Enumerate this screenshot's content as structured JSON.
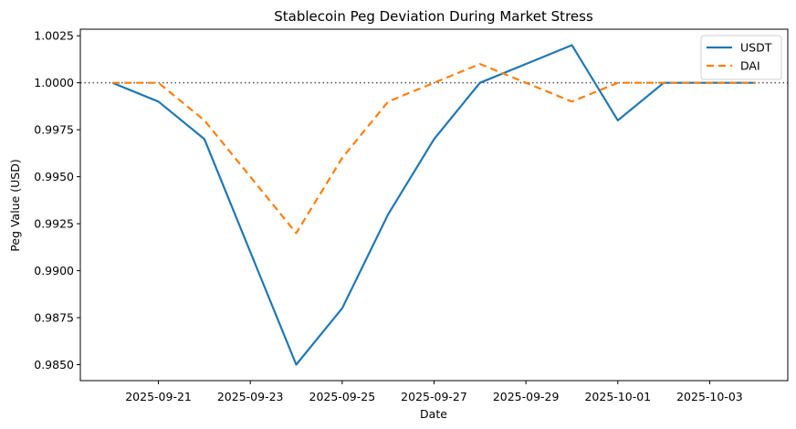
{
  "chart_data": {
    "type": "line",
    "title": "Stablecoin Peg Deviation During Market Stress",
    "xlabel": "Date",
    "ylabel": "Peg Value (USD)",
    "x": [
      "2025-09-20",
      "2025-09-21",
      "2025-09-22",
      "2025-09-23",
      "2025-09-24",
      "2025-09-25",
      "2025-09-26",
      "2025-09-27",
      "2025-09-28",
      "2025-09-29",
      "2025-09-30",
      "2025-10-01",
      "2025-10-02",
      "2025-10-03",
      "2025-10-04"
    ],
    "series": [
      {
        "name": "USDT",
        "color": "#1f77b4",
        "style": "solid",
        "values": [
          1.0,
          0.999,
          0.997,
          0.991,
          0.985,
          0.988,
          0.993,
          0.997,
          1.0,
          1.001,
          1.002,
          0.998,
          1.0,
          1.0,
          1.0
        ]
      },
      {
        "name": "DAI",
        "color": "#ff7f0e",
        "style": "dashed",
        "values": [
          1.0,
          1.0,
          0.998,
          0.995,
          0.992,
          0.996,
          0.999,
          1.0,
          1.001,
          1.0,
          0.999,
          1.0,
          1.0,
          1.0,
          1.0
        ]
      }
    ],
    "reference_line": {
      "value": 1.0,
      "style": "dotted",
      "color": "#555555"
    },
    "xticks": [
      "2025-09-21",
      "2025-09-23",
      "2025-09-25",
      "2025-09-27",
      "2025-09-29",
      "2025-10-01",
      "2025-10-03"
    ],
    "yticks": [
      0.985,
      0.9875,
      0.99,
      0.9925,
      0.995,
      0.9975,
      1.0,
      1.0025
    ],
    "ytick_labels": [
      "0.9850",
      "0.9875",
      "0.9900",
      "0.9925",
      "0.9950",
      "0.9975",
      "1.0000",
      "1.0025"
    ],
    "ylim": [
      0.98415,
      1.00285
    ],
    "xlim_days_offset": [
      -0.7,
      14.7
    ],
    "grid": false,
    "legend": {
      "position": "top-right",
      "entries": [
        "USDT",
        "DAI"
      ]
    }
  }
}
